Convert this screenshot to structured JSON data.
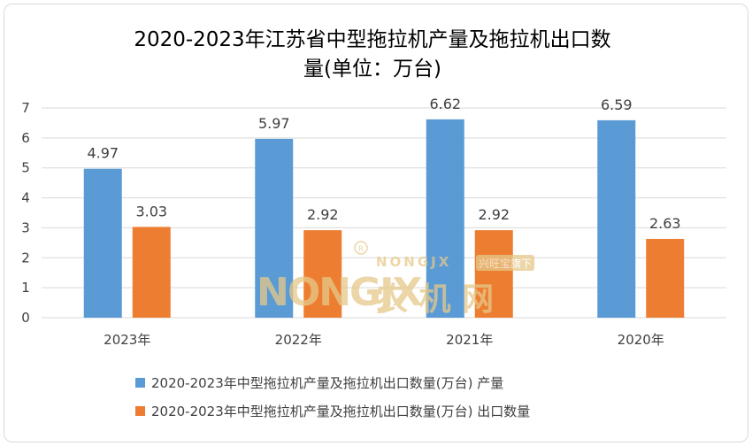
{
  "colors": {
    "series_primary": "#5b9bd5",
    "series_secondary": "#ed7d31",
    "gridline": "#d9d9d9",
    "text": "#404040",
    "watermark": "#e6c98a"
  },
  "watermark": {
    "brand": "NONGJX",
    "cn_name": "农 机 网",
    "tag": "兴旺宝旗下"
  },
  "chart_data": {
    "type": "bar",
    "title_line1": "2020-2023年江苏省中型拖拉机产量及拖拉机出口数",
    "title_line2": "量(单位：万台)",
    "categories": [
      "2023年",
      "2022年",
      "2021年",
      "2020年"
    ],
    "series": [
      {
        "name": "2020-2023年中型拖拉机产量及拖拉机出口数量(万台) 产量",
        "values": [
          4.97,
          5.97,
          6.62,
          6.59
        ],
        "labels": [
          "4.97",
          "5.97",
          "6.62",
          "6.59"
        ]
      },
      {
        "name": "2020-2023年中型拖拉机产量及拖拉机出口数量(万台) 出口数量",
        "values": [
          3.03,
          2.92,
          2.92,
          2.63
        ],
        "labels": [
          "3.03",
          "2.92",
          "2.92",
          "2.63"
        ]
      }
    ],
    "y_ticks": [
      "0",
      "1",
      "2",
      "3",
      "4",
      "5",
      "6",
      "7"
    ],
    "ylim": [
      0,
      7
    ],
    "grid": true,
    "legend_position": "bottom"
  }
}
